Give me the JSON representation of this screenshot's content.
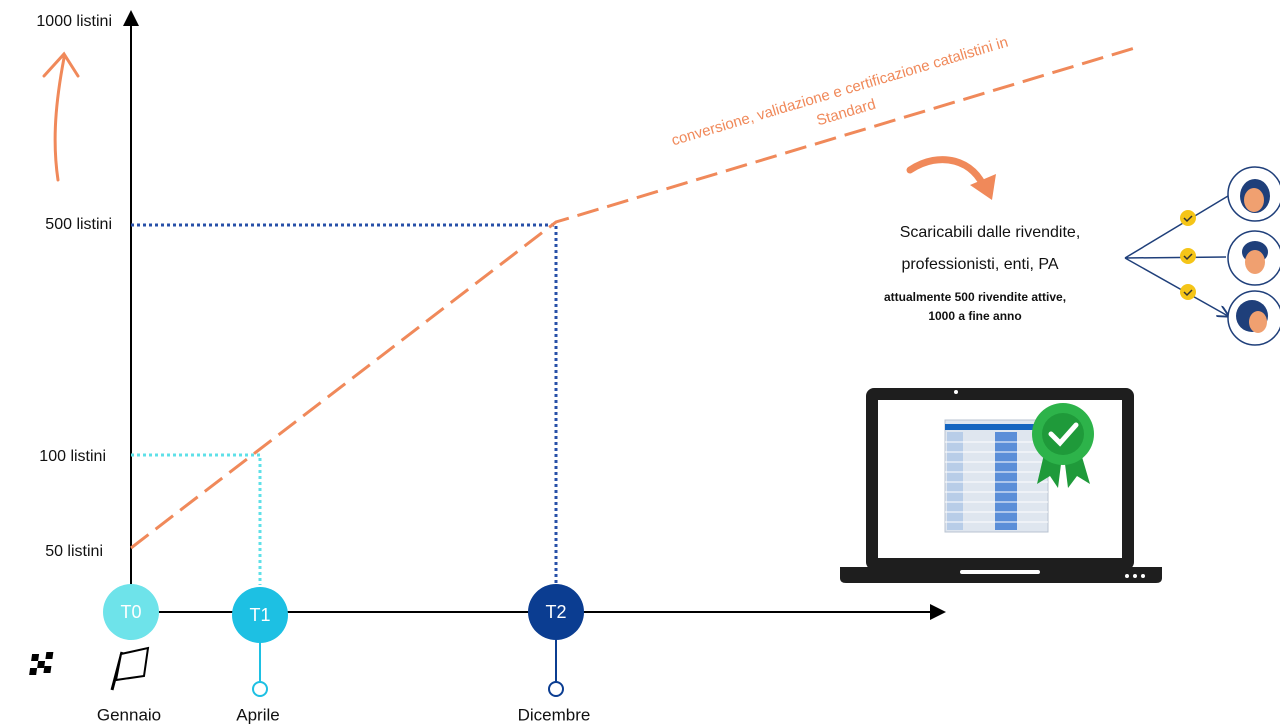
{
  "axis": {
    "labels": [
      "1000 listini",
      "500 listini",
      "100 listini",
      "50 listini"
    ]
  },
  "timeline": {
    "milestones": [
      {
        "label": "T0",
        "date": "Gennaio"
      },
      {
        "label": "T1",
        "date": "Aprile"
      },
      {
        "label": "T2",
        "date": "Dicembre"
      }
    ]
  },
  "annotation": {
    "lines": [
      "conversione, validazione e certificazione catalistini in",
      "Standard"
    ]
  },
  "info": {
    "lines": [
      "Scaricabili dalle rivendite,",
      "professionisti, enti, PA"
    ],
    "bold": [
      "attualmente 500 rivendite attive,",
      "1000 a fine anno"
    ]
  }
}
